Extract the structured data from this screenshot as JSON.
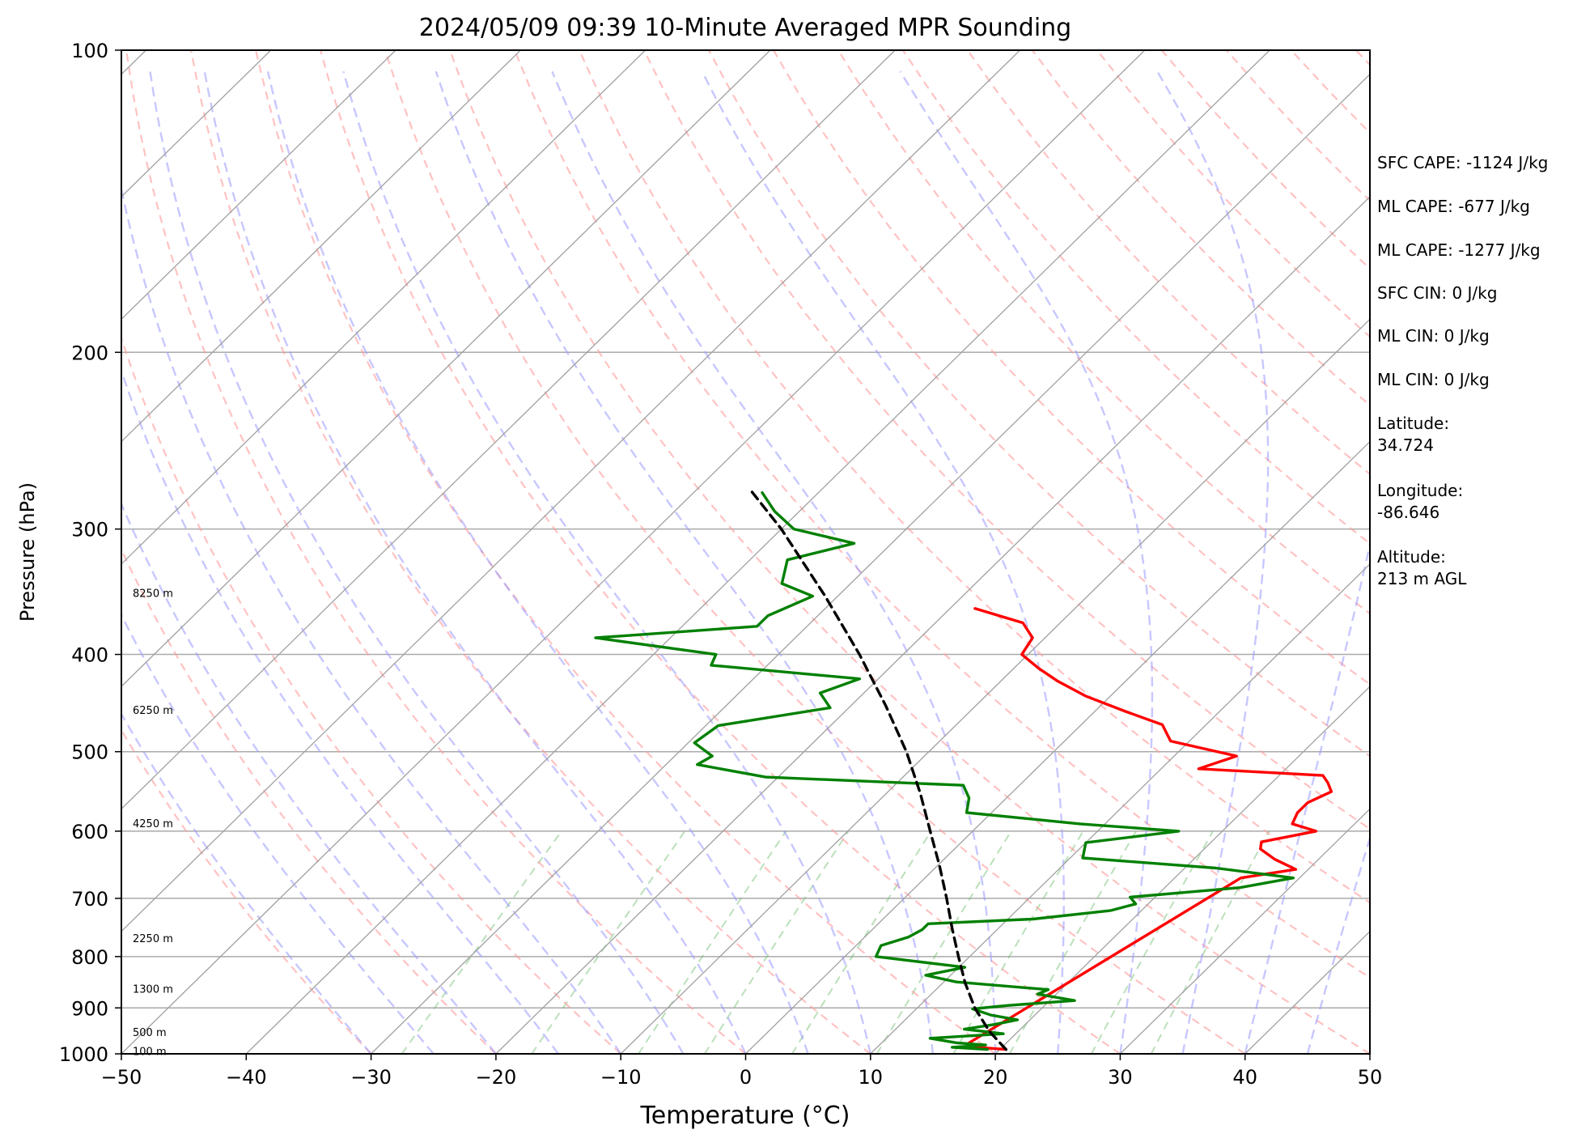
{
  "chart_data": {
    "type": "line",
    "subtype": "skew-t log-p sounding",
    "title": "2024/05/09 09:39 10-Minute Averaged MPR Sounding",
    "xlabel": "Temperature (°C)",
    "ylabel": "Pressure (hPa)",
    "xlim": [
      -50,
      50
    ],
    "ylim": [
      1000,
      100
    ],
    "y_scale": "log",
    "x_ticks": [
      "−50",
      "−40",
      "−30",
      "−20",
      "−10",
      "0",
      "10",
      "20",
      "30",
      "40",
      "50"
    ],
    "y_ticks": [
      "100",
      "200",
      "300",
      "400",
      "500",
      "600",
      "700",
      "800",
      "900",
      "1000"
    ],
    "grid": true,
    "height_labels": [
      {
        "pressure": 348,
        "text": "8250 m"
      },
      {
        "pressure": 455,
        "text": "6250 m"
      },
      {
        "pressure": 590,
        "text": "4250 m"
      },
      {
        "pressure": 768,
        "text": "2250 m"
      },
      {
        "pressure": 863,
        "text": "1300 m"
      },
      {
        "pressure": 953,
        "text": "500 m"
      },
      {
        "pressure": 995,
        "text": "100 m"
      }
    ],
    "series": [
      {
        "color": "#ff0000",
        "points": [
          [
            990,
            20.5
          ],
          [
            985,
            18.0
          ],
          [
            975,
            17.0
          ],
          [
            668,
            25.3
          ],
          [
            655,
            29.0
          ],
          [
            640,
            26.5
          ],
          [
            625,
            24.5
          ],
          [
            615,
            24.0
          ],
          [
            600,
            27.5
          ],
          [
            590,
            25.0
          ],
          [
            575,
            24.5
          ],
          [
            562,
            24.5
          ],
          [
            548,
            25.5
          ],
          [
            537,
            24.5
          ],
          [
            528,
            23.5
          ],
          [
            520,
            13.0
          ],
          [
            505,
            15.0
          ],
          [
            488,
            8.5
          ],
          [
            470,
            6.5
          ],
          [
            456,
            2.5
          ],
          [
            440,
            -2.0
          ],
          [
            425,
            -5.5
          ],
          [
            413,
            -8.0
          ],
          [
            400,
            -10.5
          ],
          [
            385,
            -11.0
          ],
          [
            372,
            -13.0
          ],
          [
            360,
            -18.0
          ]
        ]
      },
      {
        "color": "#008000",
        "points": [
          [
            990,
            19.0
          ],
          [
            985,
            16.0
          ],
          [
            980,
            18.5
          ],
          [
            975,
            16.0
          ],
          [
            965,
            13.5
          ],
          [
            955,
            19.0
          ],
          [
            945,
            15.5
          ],
          [
            935,
            17.5
          ],
          [
            925,
            19.0
          ],
          [
            915,
            16.5
          ],
          [
            902,
            14.5
          ],
          [
            895,
            17.0
          ],
          [
            885,
            22.0
          ],
          [
            872,
            18.5
          ],
          [
            863,
            19.0
          ],
          [
            848,
            11.0
          ],
          [
            835,
            8.0
          ],
          [
            820,
            10.5
          ],
          [
            800,
            2.5
          ],
          [
            780,
            2.0
          ],
          [
            765,
            3.5
          ],
          [
            752,
            4.0
          ],
          [
            742,
            4.0
          ],
          [
            734,
            12.0
          ],
          [
            720,
            17.5
          ],
          [
            709,
            19.0
          ],
          [
            698,
            18.0
          ],
          [
            683,
            26.0
          ],
          [
            668,
            29.5
          ],
          [
            653,
            22.5
          ],
          [
            638,
            11.0
          ],
          [
            616,
            10.0
          ],
          [
            600,
            16.5
          ],
          [
            590,
            8.0
          ],
          [
            575,
            -2.0
          ],
          [
            556,
            -3.0
          ],
          [
            540,
            -4.5
          ],
          [
            530,
            -21.0
          ],
          [
            515,
            -27.5
          ],
          [
            505,
            -27.0
          ],
          [
            490,
            -29.5
          ],
          [
            471,
            -29.0
          ],
          [
            452,
            -21.5
          ],
          [
            437,
            -23.5
          ],
          [
            423,
            -21.5
          ],
          [
            410,
            -34.5
          ],
          [
            400,
            -35.0
          ],
          [
            385,
            -46.0
          ],
          [
            375,
            -34.0
          ],
          [
            366,
            -34.0
          ],
          [
            350,
            -32.0
          ],
          [
            340,
            -35.5
          ],
          [
            322,
            -37.0
          ],
          [
            310,
            -33.0
          ],
          [
            300,
            -39.0
          ],
          [
            288,
            -42.0
          ],
          [
            276,
            -44.5
          ]
        ]
      },
      {
        "color": "#000000",
        "dashed": true,
        "points": [
          [
            990,
            20.5
          ],
          [
            950,
            17.7
          ],
          [
            900,
            14.6
          ],
          [
            850,
            11.8
          ],
          [
            800,
            9.1
          ],
          [
            750,
            6.3
          ],
          [
            700,
            3.4
          ],
          [
            650,
            0.2
          ],
          [
            600,
            -3.4
          ],
          [
            550,
            -7.3
          ],
          [
            500,
            -11.8
          ],
          [
            450,
            -17.2
          ],
          [
            400,
            -23.5
          ],
          [
            350,
            -31.0
          ],
          [
            300,
            -40.0
          ],
          [
            275,
            -45.5
          ]
        ]
      }
    ]
  },
  "annotations": [
    "SFC CAPE: -1124 J/kg",
    "ML CAPE: -677 J/kg",
    "ML CAPE: -1277 J/kg",
    "SFC CIN: 0 J/kg",
    "ML CIN: 0 J/kg",
    "ML CIN: 0 J/kg",
    "Latitude:\n34.724",
    "Longitude:\n-86.646",
    "Altitude:\n213 m AGL"
  ]
}
